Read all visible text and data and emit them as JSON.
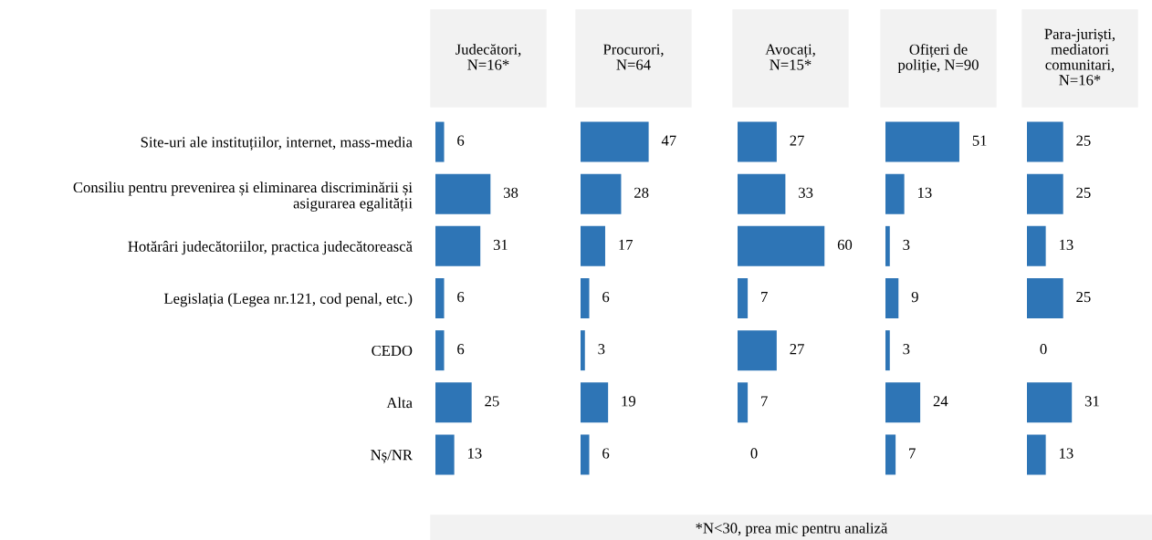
{
  "chart_data": [
    {
      "type": "bar",
      "orientation": "horizontal",
      "title": "Judecători, N=16*",
      "categories": [
        "Site-uri ale instituțiilor, internet, mass-media",
        "Consiliu pentru prevenirea și eliminarea discriminării și asigurarea egalității",
        "Hotărâri judecătoriilor, practica judecătorească",
        "Legislația (Legea nr.121, cod penal, etc.)",
        "CEDO",
        "Alta",
        "Nș/NR"
      ],
      "values": [
        6,
        38,
        31,
        6,
        6,
        25,
        13
      ],
      "color": "#2e75b6",
      "data_labels": true,
      "tick_labels": "y",
      "annotations": [
        "*N<30, prea mic pentru analiză"
      ]
    },
    {
      "type": "bar",
      "orientation": "horizontal",
      "title": "Procurori, N=64",
      "categories": [
        null,
        null,
        null,
        null,
        null,
        null,
        null
      ],
      "values": [
        47,
        28,
        17,
        6,
        3,
        19,
        6
      ],
      "color": "#2e75b6",
      "data_labels": true,
      "tick_labels": false
    },
    {
      "type": "bar",
      "orientation": "horizontal",
      "title": "Avocați, N=15*",
      "categories": [
        null,
        null,
        null,
        null,
        null,
        null,
        null
      ],
      "values": [
        27,
        33,
        60,
        7,
        27,
        7,
        0
      ],
      "color": "#2e75b6",
      "data_labels": true,
      "tick_labels": false
    },
    {
      "type": "bar",
      "orientation": "horizontal",
      "title": "Ofițeri de poliție, N=90",
      "categories": [
        null,
        null,
        null,
        null,
        null,
        null,
        null
      ],
      "values": [
        51,
        13,
        3,
        9,
        3,
        24,
        7
      ],
      "color": "#2e75b6",
      "data_labels": true,
      "tick_labels": false
    },
    {
      "type": "bar",
      "orientation": "horizontal",
      "title": "Para-juriști, mediatori comunitari, N=16*",
      "categories": [
        null,
        null,
        null,
        null,
        null,
        null,
        null
      ],
      "values": [
        25,
        25,
        13,
        25,
        0,
        31,
        13
      ],
      "color": "#2e75b6",
      "data_labels": true,
      "tick_labels": false
    }
  ]
}
